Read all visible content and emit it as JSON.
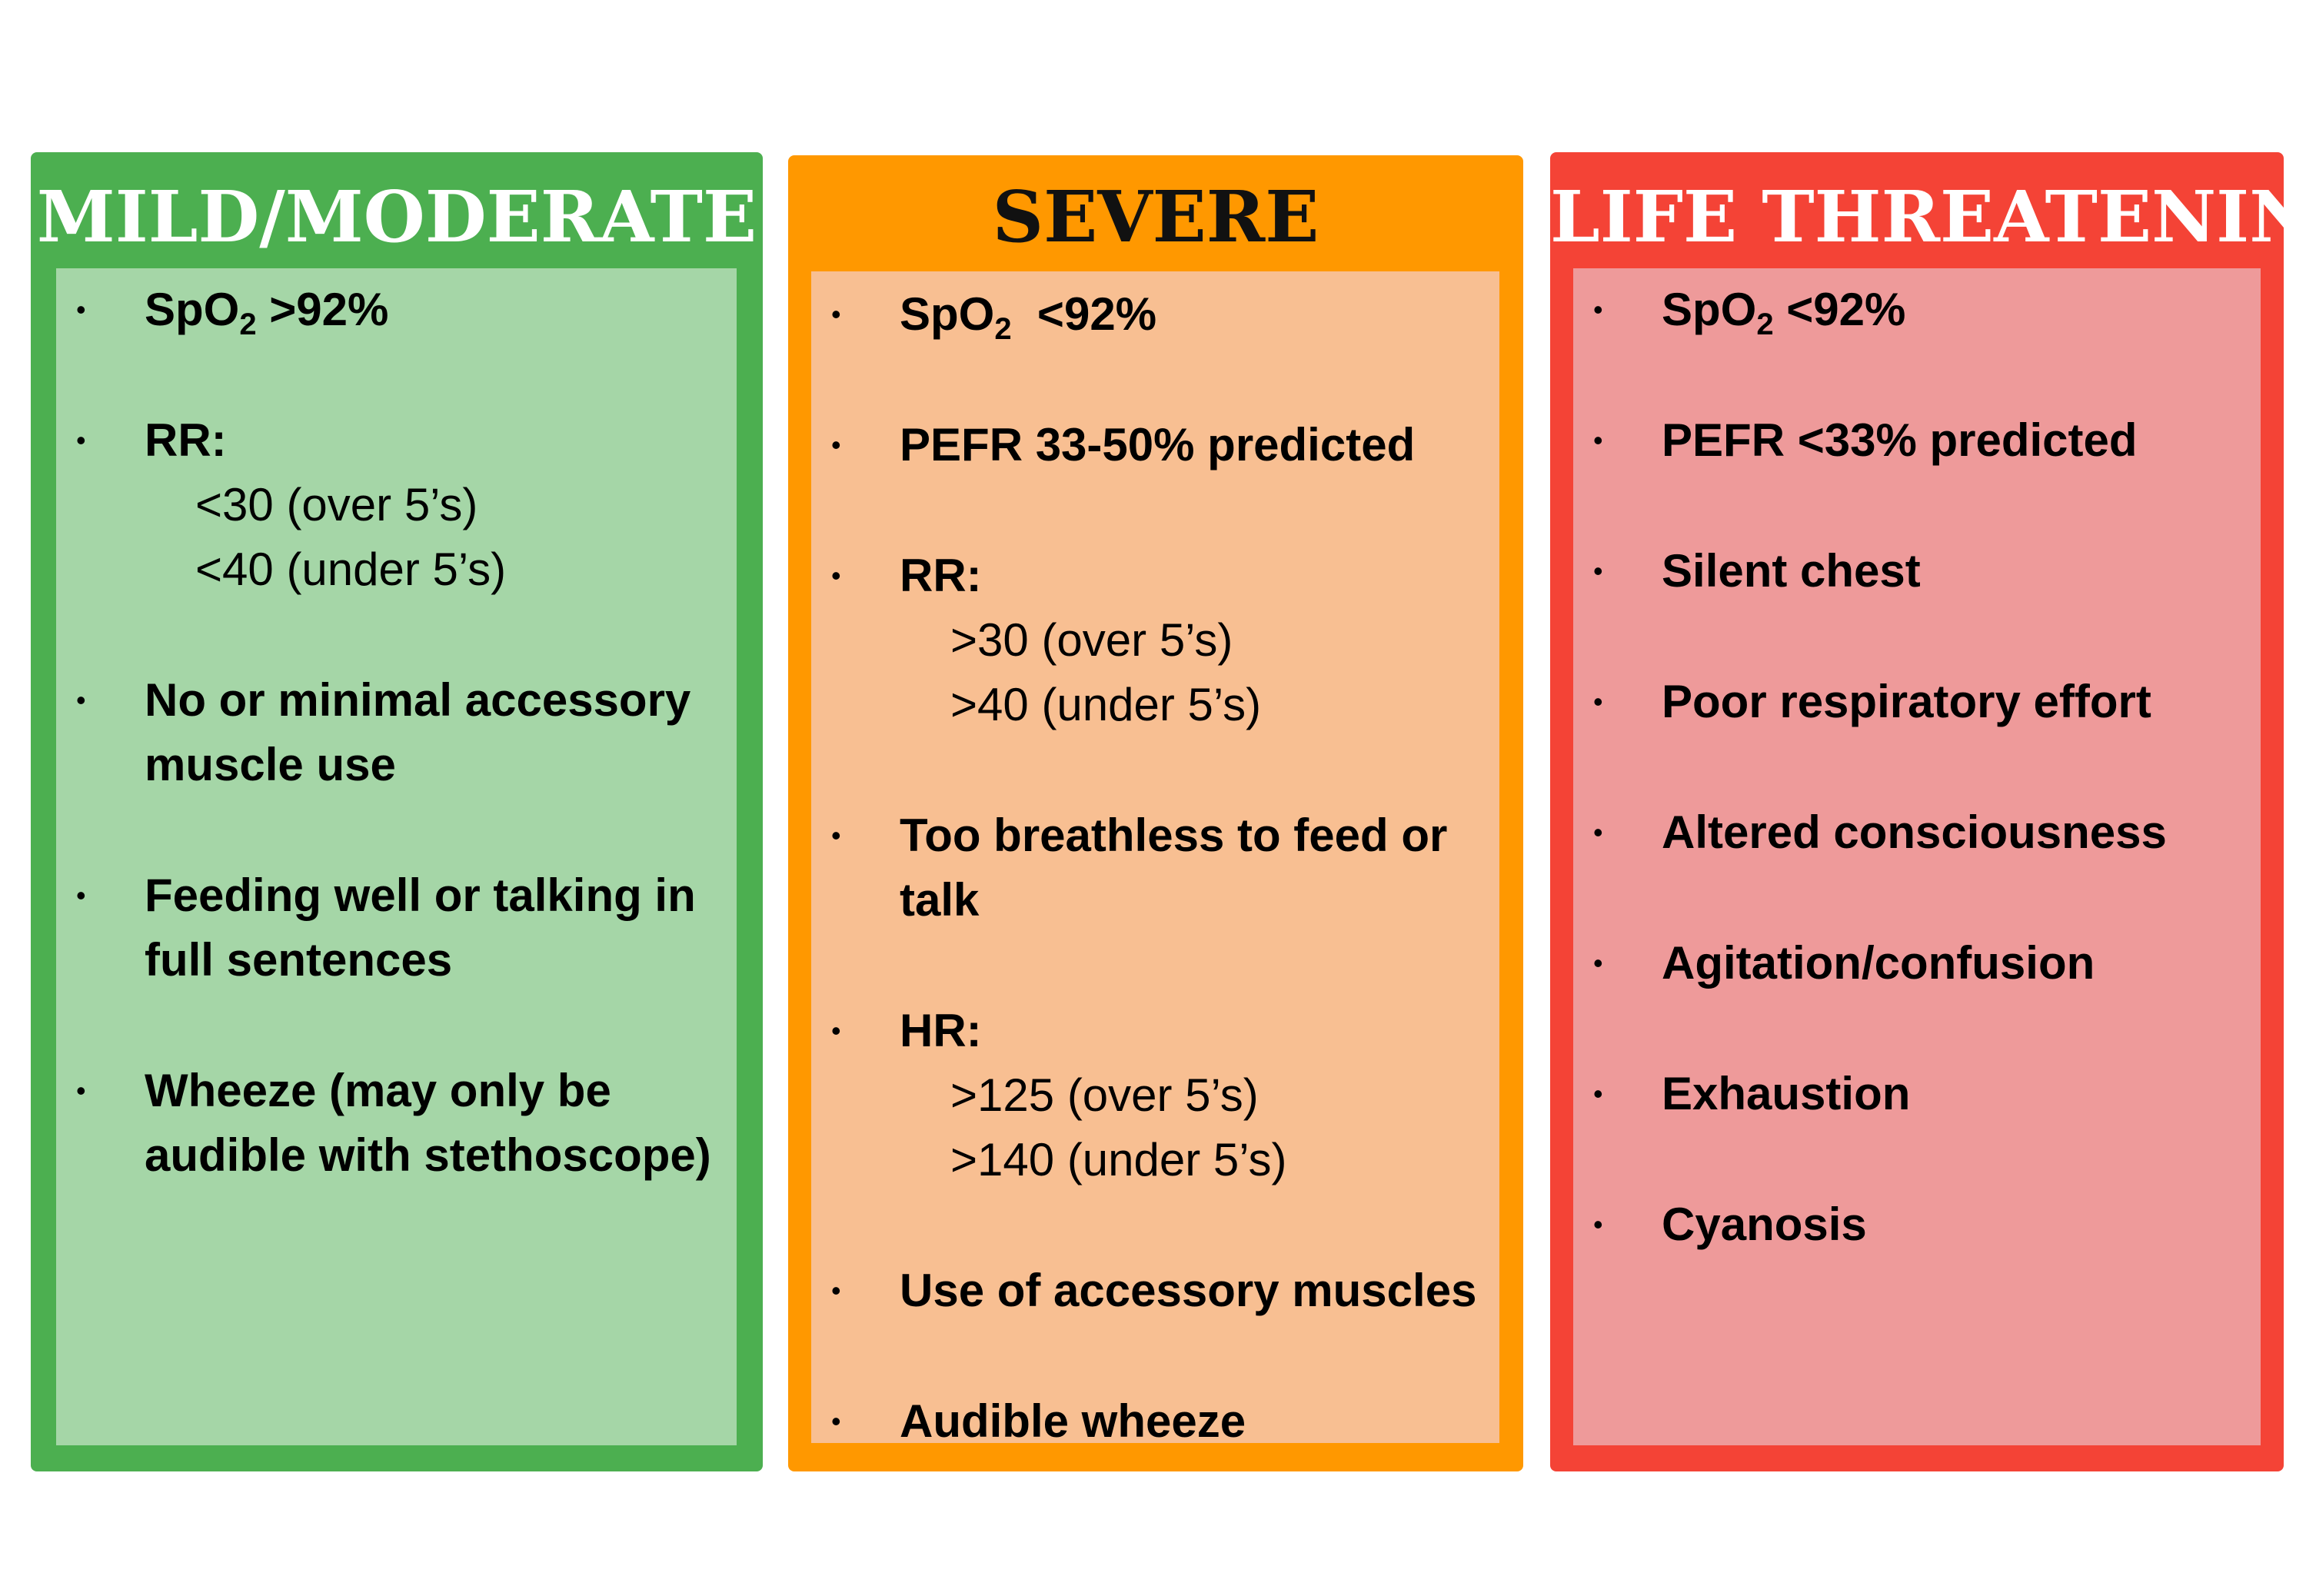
{
  "colors": {
    "mild_border": "#4caf50",
    "mild_fill": "#a5d6a7",
    "severe_border": "#ff9800",
    "severe_fill": "#f8bf92",
    "life_border": "#f44336",
    "life_fill": "#ee9a9a"
  },
  "bullet_glyph": "•",
  "mild": {
    "title": "MILD/MODERATE",
    "items": [
      {
        "label": "SpO",
        "sub": "2",
        "suffix": " >92%"
      },
      {
        "label": "RR:",
        "lines": [
          "<30 (over 5’s)",
          "<40 (under 5’s)"
        ]
      },
      {
        "label": "No or minimal accessory muscle use"
      },
      {
        "label": "Feeding well or talking in full sentences"
      },
      {
        "label": "Wheeze (may only be audible with stethoscope)"
      }
    ]
  },
  "severe": {
    "title": "SEVERE",
    "items": [
      {
        "label": "SpO",
        "sub": "2",
        "suffix": "  <92%"
      },
      {
        "label": "PEFR 33-50% predicted"
      },
      {
        "label": "RR:",
        "lines": [
          ">30 (over 5’s)",
          ">40 (under 5’s)"
        ]
      },
      {
        "label": "Too breathless to feed or talk"
      },
      {
        "label": "HR:",
        "lines": [
          ">125 (over 5’s)",
          ">140 (under 5’s)"
        ]
      },
      {
        "label": "Use of accessory muscles"
      },
      {
        "label": "Audible wheeze"
      }
    ]
  },
  "life": {
    "title": "LIFE THREATENING",
    "items": [
      {
        "label": "SpO",
        "sub": "2",
        "suffix": " <92%"
      },
      {
        "label": "PEFR <33% predicted"
      },
      {
        "label": "Silent chest"
      },
      {
        "label": "Poor respiratory effort"
      },
      {
        "label": "Altered consciousness"
      },
      {
        "label": "Agitation/confusion"
      },
      {
        "label": "Exhaustion"
      },
      {
        "label": "Cyanosis"
      }
    ]
  }
}
